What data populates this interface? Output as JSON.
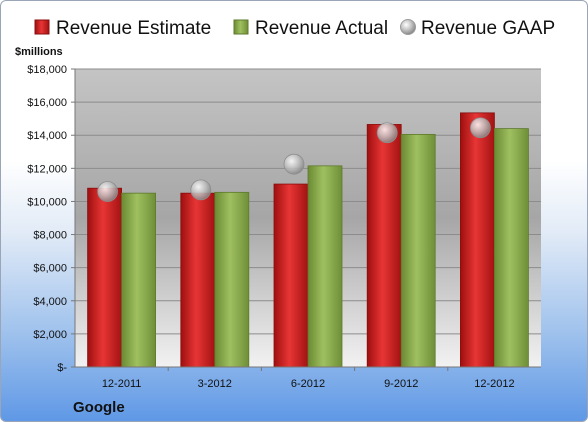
{
  "chart_data": {
    "type": "bar",
    "categories": [
      "12-2011",
      "3-2012",
      "6-2012",
      "9-2012",
      "12-2012"
    ],
    "series": [
      {
        "name": "Revenue Estimate",
        "kind": "bar",
        "color": "#d42a2a",
        "values": [
          10800,
          10500,
          11050,
          14650,
          15350
        ]
      },
      {
        "name": "Revenue Actual",
        "kind": "bar",
        "color": "#8fb050",
        "values": [
          10500,
          10550,
          12150,
          14050,
          14400
        ]
      },
      {
        "name": "Revenue GAAP",
        "kind": "scatter",
        "color": "#b9b9b9",
        "values": [
          10600,
          10700,
          12250,
          14150,
          14450
        ]
      }
    ],
    "ylabel": "$millions",
    "ylim": [
      0,
      18000
    ],
    "yticks": [
      {
        "value": 0,
        "label": "$-"
      },
      {
        "value": 2000,
        "label": "$2,000"
      },
      {
        "value": 4000,
        "label": "$4,000"
      },
      {
        "value": 6000,
        "label": "$6,000"
      },
      {
        "value": 8000,
        "label": "$8,000"
      },
      {
        "value": 10000,
        "label": "$10,000"
      },
      {
        "value": 12000,
        "label": "$12,000"
      },
      {
        "value": 14000,
        "label": "$14,000"
      },
      {
        "value": 16000,
        "label": "$16,000"
      },
      {
        "value": 18000,
        "label": "$18,000"
      }
    ],
    "grid": true,
    "legend_position": "top"
  },
  "company": "Google"
}
